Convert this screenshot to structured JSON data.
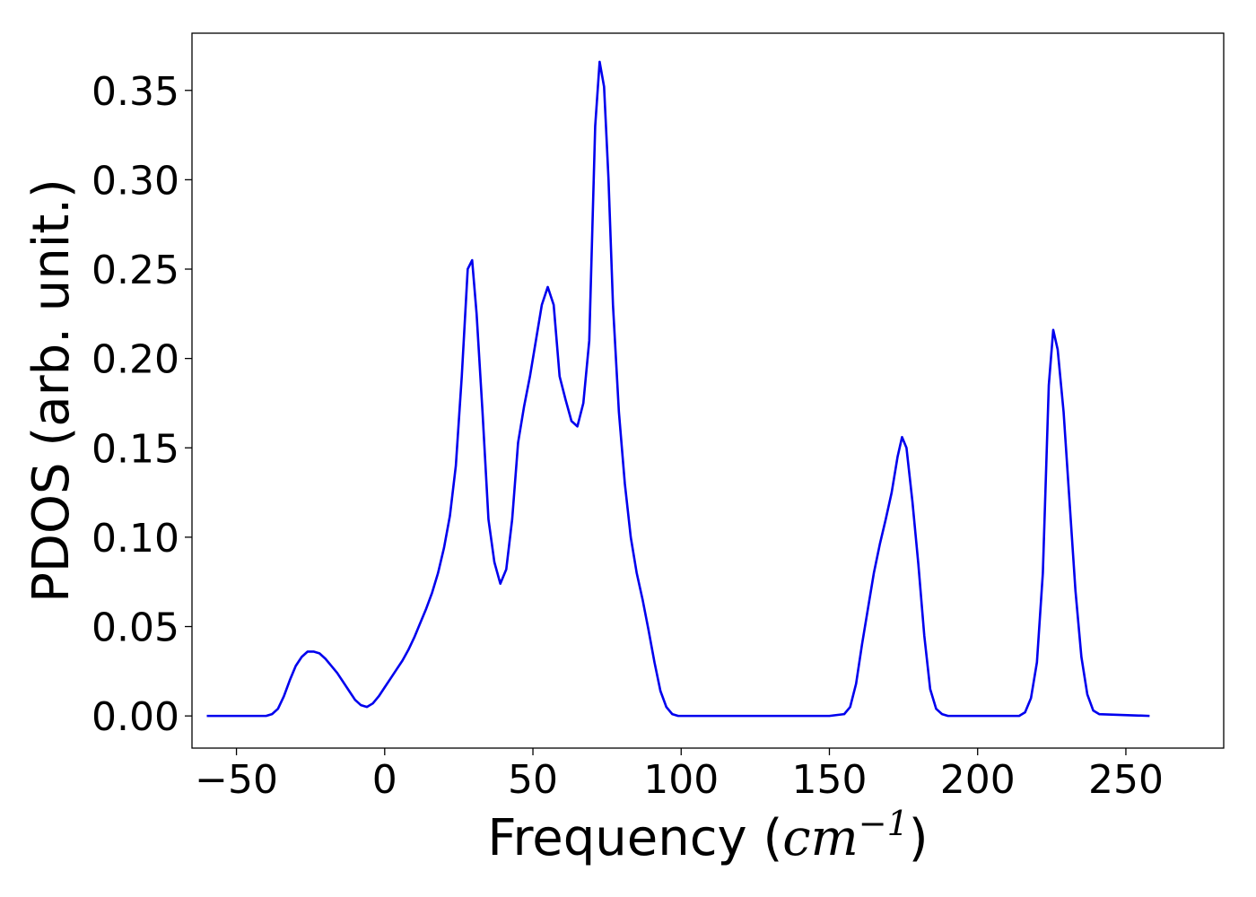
{
  "chart_data": {
    "type": "line",
    "xlabel_prefix": "Frequency (",
    "xlabel_unit_base": "cm",
    "xlabel_unit_exp": "−1",
    "xlabel_suffix": ")",
    "ylabel": "PDOS (arb. unit.)",
    "xlim": [
      -65,
      283
    ],
    "ylim": [
      -0.018,
      0.382
    ],
    "grid": false,
    "legend": "none",
    "x_ticks": [
      -50,
      0,
      50,
      100,
      150,
      200,
      250
    ],
    "x_tick_labels": [
      "−50",
      "0",
      "50",
      "100",
      "150",
      "200",
      "250"
    ],
    "y_ticks": [
      0.0,
      0.05,
      0.1,
      0.15,
      0.2,
      0.25,
      0.3,
      0.35
    ],
    "y_tick_labels": [
      "0.00",
      "0.05",
      "0.10",
      "0.15",
      "0.20",
      "0.25",
      "0.30",
      "0.35"
    ],
    "series": [
      {
        "color": "#0000ee",
        "x": [
          -60,
          -40,
          -38,
          -36,
          -34,
          -32,
          -30,
          -28,
          -26,
          -24,
          -22,
          -20,
          -18,
          -16,
          -14,
          -12,
          -10,
          -8,
          -6,
          -4,
          -2,
          0,
          2,
          4,
          6,
          8,
          10,
          12,
          14,
          16,
          18,
          20,
          22,
          24,
          26,
          28,
          29.5,
          31,
          33,
          35,
          37,
          39,
          41,
          43,
          45,
          47,
          49,
          51,
          53,
          55,
          57,
          59,
          61,
          63,
          65,
          67,
          69,
          71,
          72.5,
          74,
          75.5,
          77,
          79,
          81,
          83,
          85,
          87,
          89,
          91,
          93,
          95,
          97,
          99,
          101,
          110,
          150,
          155,
          157,
          159,
          161,
          163,
          165,
          167,
          169,
          171,
          173,
          174.5,
          176,
          178,
          180,
          182,
          184,
          186,
          188,
          190,
          200,
          214,
          216,
          218,
          220,
          222,
          224,
          225.5,
          227,
          229,
          231,
          233,
          235,
          237,
          239,
          241,
          258
        ],
        "y": [
          0.0,
          0.0,
          0.001,
          0.004,
          0.011,
          0.02,
          0.028,
          0.033,
          0.036,
          0.036,
          0.035,
          0.032,
          0.028,
          0.024,
          0.019,
          0.014,
          0.009,
          0.006,
          0.005,
          0.007,
          0.011,
          0.016,
          0.021,
          0.026,
          0.031,
          0.037,
          0.044,
          0.052,
          0.06,
          0.069,
          0.08,
          0.094,
          0.112,
          0.14,
          0.19,
          0.25,
          0.255,
          0.225,
          0.17,
          0.11,
          0.086,
          0.074,
          0.082,
          0.11,
          0.153,
          0.173,
          0.19,
          0.21,
          0.23,
          0.24,
          0.23,
          0.19,
          0.177,
          0.165,
          0.162,
          0.175,
          0.21,
          0.33,
          0.366,
          0.352,
          0.3,
          0.23,
          0.17,
          0.13,
          0.1,
          0.08,
          0.065,
          0.048,
          0.03,
          0.014,
          0.005,
          0.001,
          0.0,
          0.0,
          0.0,
          0.0,
          0.001,
          0.005,
          0.018,
          0.04,
          0.06,
          0.08,
          0.096,
          0.11,
          0.125,
          0.145,
          0.156,
          0.15,
          0.12,
          0.085,
          0.045,
          0.015,
          0.004,
          0.001,
          0.0,
          0.0,
          0.0,
          0.002,
          0.01,
          0.03,
          0.08,
          0.185,
          0.216,
          0.205,
          0.17,
          0.12,
          0.07,
          0.033,
          0.012,
          0.003,
          0.001,
          0.0
        ]
      }
    ]
  }
}
